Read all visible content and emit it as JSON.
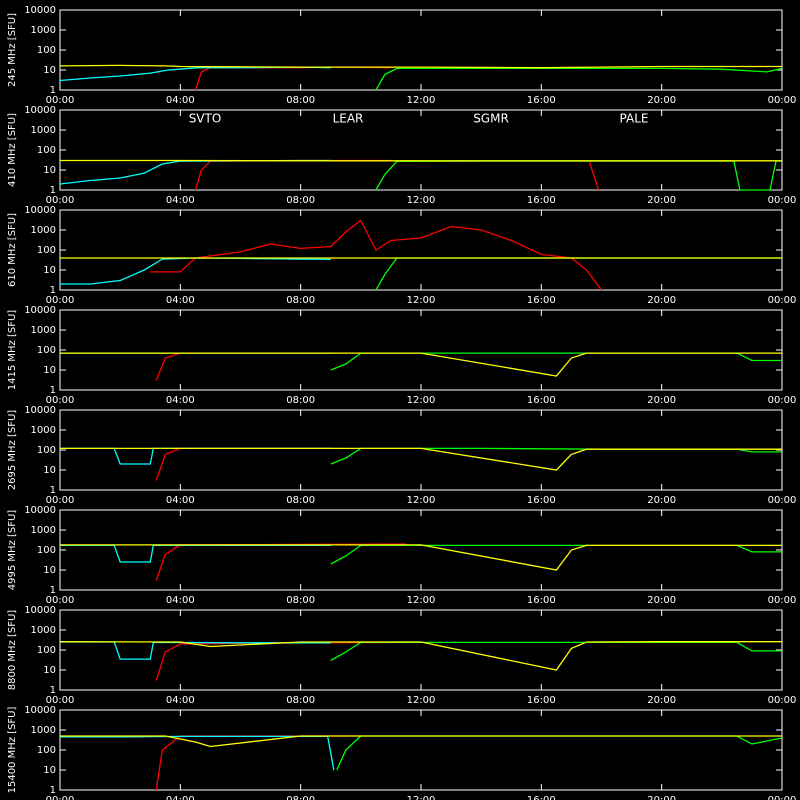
{
  "chart_data": [
    {
      "type": "line",
      "ylabel": "245 MHz [SFU]",
      "xlim": [
        0,
        24
      ],
      "ylim": [
        1,
        10000
      ],
      "log_y": true,
      "xticks": [
        {
          "value": 0,
          "label": "00:00"
        },
        {
          "value": 4,
          "label": "04:00"
        },
        {
          "value": 8,
          "label": "08:00"
        },
        {
          "value": 12,
          "label": "12:00"
        },
        {
          "value": 16,
          "label": "16:00"
        },
        {
          "value": 20,
          "label": "20:00"
        },
        {
          "value": 24,
          "label": "00:00"
        }
      ],
      "yticks": [
        1,
        10,
        100,
        1000,
        10000
      ],
      "series": [
        {
          "color": "#ff0000",
          "x": [
            4.5,
            4.7,
            5,
            8,
            9,
            11
          ],
          "values": [
            1,
            8,
            13,
            13,
            14,
            13
          ]
        },
        {
          "color": "#00ffff",
          "x": [
            0,
            1,
            2,
            3,
            3.6,
            4.6,
            6,
            8,
            9
          ],
          "values": [
            3,
            4,
            5,
            7,
            10,
            13,
            13,
            14,
            13
          ]
        },
        {
          "color": "#00ff00",
          "x": [
            10.5,
            10.8,
            11.2,
            14,
            17,
            20,
            22,
            23.5,
            24
          ],
          "values": [
            1,
            6,
            12,
            12,
            12,
            12,
            11,
            8,
            12
          ]
        },
        {
          "color": "#ffff00",
          "x": [
            0,
            2,
            3.5,
            4,
            8,
            12,
            16,
            18,
            20,
            22,
            24
          ],
          "values": [
            16,
            17,
            16,
            15,
            14,
            14,
            13,
            14,
            15,
            15,
            15
          ]
        }
      ]
    },
    {
      "type": "line",
      "ylabel": "410 MHz [SFU]",
      "xlim": [
        0,
        24
      ],
      "ylim": [
        1,
        10000
      ],
      "log_y": true,
      "legend": true,
      "xticks": [
        {
          "value": 0,
          "label": "00:00"
        },
        {
          "value": 4,
          "label": "04:00"
        },
        {
          "value": 8,
          "label": "08:00"
        },
        {
          "value": 12,
          "label": "12:00"
        },
        {
          "value": 16,
          "label": "16:00"
        },
        {
          "value": 20,
          "label": "20:00"
        },
        {
          "value": 24,
          "label": "00:00"
        }
      ],
      "yticks": [
        1,
        10,
        100,
        1000,
        10000
      ],
      "series": [
        {
          "name": "SVTO",
          "color": "#ff0000",
          "x": [
            4.5,
            4.7,
            5,
            8,
            11,
            17.3,
            17.6,
            17.9
          ],
          "values": [
            1,
            10,
            28,
            30,
            30,
            null,
            25,
            1
          ]
        },
        {
          "name": "LEAR",
          "color": "#00ffff",
          "x": [
            0,
            1,
            2,
            2.8,
            3.4,
            4,
            6,
            8,
            9
          ],
          "values": [
            2,
            3,
            4,
            7,
            20,
            28,
            29,
            30,
            30
          ]
        },
        {
          "name": "SGMR",
          "color": "#00ff00",
          "x": [
            10.5,
            10.8,
            11.2,
            14,
            18,
            22.4,
            22.6,
            23.6,
            23.8,
            24
          ],
          "values": [
            1,
            6,
            27,
            28,
            28,
            28,
            1,
            1,
            28,
            28
          ]
        },
        {
          "name": "PALE",
          "color": "#ffff00",
          "x": [
            0,
            4,
            8,
            12,
            16,
            20,
            24
          ],
          "values": [
            30,
            30,
            29,
            29,
            29,
            29,
            29
          ]
        }
      ]
    },
    {
      "type": "line",
      "ylabel": "610 MHz [SFU]",
      "xlim": [
        0,
        24
      ],
      "ylim": [
        1,
        10000
      ],
      "log_y": true,
      "xticks": [
        {
          "value": 0,
          "label": "00:00"
        },
        {
          "value": 4,
          "label": "04:00"
        },
        {
          "value": 8,
          "label": "08:00"
        },
        {
          "value": 12,
          "label": "12:00"
        },
        {
          "value": 16,
          "label": "16:00"
        },
        {
          "value": 20,
          "label": "20:00"
        },
        {
          "value": 24,
          "label": "00:00"
        }
      ],
      "yticks": [
        1,
        10,
        100,
        1000,
        10000
      ],
      "series": [
        {
          "color": "#ff0000",
          "x": [
            3,
            4,
            4.5,
            5,
            6,
            7,
            8,
            9,
            9.5,
            10,
            10.5,
            11,
            12,
            13,
            14,
            15,
            16,
            17,
            17.5,
            18
          ],
          "values": [
            8,
            8,
            40,
            50,
            80,
            200,
            120,
            150,
            800,
            3000,
            100,
            300,
            400,
            1500,
            1000,
            300,
            60,
            40,
            10,
            1
          ]
        },
        {
          "color": "#00ffff",
          "x": [
            0,
            1,
            2,
            2.8,
            3.4,
            4.5,
            6,
            8,
            9
          ],
          "values": [
            2,
            2,
            3,
            10,
            35,
            40,
            38,
            35,
            34
          ]
        },
        {
          "color": "#00ff00",
          "x": [
            10.5,
            10.8,
            11.2,
            14,
            18,
            22,
            24
          ],
          "values": [
            1,
            6,
            40,
            40,
            40,
            40,
            40
          ]
        },
        {
          "color": "#ffff00",
          "x": [
            0,
            4,
            8,
            12,
            16,
            20,
            24
          ],
          "values": [
            40,
            40,
            40,
            40,
            40,
            40,
            40
          ]
        }
      ]
    },
    {
      "type": "line",
      "ylabel": "1415 MHz [SFU]",
      "xlim": [
        0,
        24
      ],
      "ylim": [
        1,
        10000
      ],
      "log_y": true,
      "xticks": [
        {
          "value": 0,
          "label": "00:00"
        },
        {
          "value": 4,
          "label": "04:00"
        },
        {
          "value": 8,
          "label": "08:00"
        },
        {
          "value": 12,
          "label": "12:00"
        },
        {
          "value": 16,
          "label": "16:00"
        },
        {
          "value": 20,
          "label": "20:00"
        },
        {
          "value": 24,
          "label": "00:00"
        }
      ],
      "yticks": [
        1,
        10,
        100,
        1000,
        10000
      ],
      "series": [
        {
          "color": "#ff0000",
          "x": [
            3.2,
            3.5,
            4,
            8,
            9.2
          ],
          "values": [
            3,
            40,
            70,
            70,
            70
          ]
        },
        {
          "color": "#00ffff",
          "x": [
            0,
            2,
            4,
            6,
            9
          ],
          "values": [
            70,
            70,
            70,
            70,
            70
          ]
        },
        {
          "color": "#00ff00",
          "x": [
            9,
            9.5,
            10,
            14,
            18,
            22.5,
            23,
            24
          ],
          "values": [
            10,
            20,
            70,
            70,
            70,
            70,
            30,
            30
          ]
        },
        {
          "color": "#ffff00",
          "x": [
            0,
            4,
            8,
            12,
            16.5,
            17,
            17.5,
            20,
            24
          ],
          "values": [
            70,
            70,
            70,
            70,
            5,
            40,
            70,
            70,
            70
          ]
        }
      ]
    },
    {
      "type": "line",
      "ylabel": "2695 MHz [SFU]",
      "xlim": [
        0,
        24
      ],
      "ylim": [
        1,
        10000
      ],
      "log_y": true,
      "xticks": [
        {
          "value": 0,
          "label": "00:00"
        },
        {
          "value": 4,
          "label": "04:00"
        },
        {
          "value": 8,
          "label": "08:00"
        },
        {
          "value": 12,
          "label": "12:00"
        },
        {
          "value": 16,
          "label": "16:00"
        },
        {
          "value": 20,
          "label": "20:00"
        },
        {
          "value": 24,
          "label": "00:00"
        }
      ],
      "yticks": [
        1,
        10,
        100,
        1000,
        10000
      ],
      "series": [
        {
          "color": "#ff0000",
          "x": [
            3.2,
            3.5,
            4,
            8,
            9.2
          ],
          "values": [
            3,
            60,
            120,
            120,
            120
          ]
        },
        {
          "color": "#00ffff",
          "x": [
            0,
            1.8,
            2,
            3,
            3.1,
            6,
            9
          ],
          "values": [
            120,
            120,
            20,
            20,
            120,
            120,
            120
          ]
        },
        {
          "color": "#00ff00",
          "x": [
            9,
            9.5,
            10,
            14,
            18,
            22.5,
            23,
            24
          ],
          "values": [
            20,
            40,
            120,
            120,
            110,
            110,
            80,
            80
          ]
        },
        {
          "color": "#ffff00",
          "x": [
            0,
            4,
            8,
            12,
            16.5,
            17,
            17.5,
            20,
            24
          ],
          "values": [
            120,
            120,
            120,
            120,
            10,
            60,
            110,
            110,
            110
          ]
        }
      ]
    },
    {
      "type": "line",
      "ylabel": "4995 MHz [SFU]",
      "xlim": [
        0,
        24
      ],
      "ylim": [
        1,
        10000
      ],
      "log_y": true,
      "xticks": [
        {
          "value": 0,
          "label": "00:00"
        },
        {
          "value": 4,
          "label": "04:00"
        },
        {
          "value": 8,
          "label": "08:00"
        },
        {
          "value": 12,
          "label": "12:00"
        },
        {
          "value": 16,
          "label": "16:00"
        },
        {
          "value": 20,
          "label": "20:00"
        },
        {
          "value": 24,
          "label": "00:00"
        }
      ],
      "yticks": [
        1,
        10,
        100,
        1000,
        10000
      ],
      "series": [
        {
          "color": "#ff0000",
          "x": [
            3.2,
            3.5,
            4,
            8,
            11.5
          ],
          "values": [
            3,
            60,
            180,
            190,
            200
          ]
        },
        {
          "color": "#00ffff",
          "x": [
            0,
            1.8,
            2,
            3,
            3.1,
            6,
            9
          ],
          "values": [
            170,
            170,
            25,
            25,
            170,
            170,
            170
          ]
        },
        {
          "color": "#00ff00",
          "x": [
            9,
            9.5,
            10,
            14,
            18,
            22.5,
            23,
            24
          ],
          "values": [
            20,
            50,
            170,
            170,
            170,
            170,
            80,
            80
          ]
        },
        {
          "color": "#ffff00",
          "x": [
            0,
            4,
            8,
            12,
            16.5,
            17,
            17.5,
            20,
            24
          ],
          "values": [
            180,
            180,
            180,
            180,
            10,
            100,
            170,
            170,
            170
          ]
        }
      ]
    },
    {
      "type": "line",
      "ylabel": "8800 MHz [SFU]",
      "xlim": [
        0,
        24
      ],
      "ylim": [
        1,
        10000
      ],
      "log_y": true,
      "xticks": [
        {
          "value": 0,
          "label": "00:00"
        },
        {
          "value": 4,
          "label": "04:00"
        },
        {
          "value": 8,
          "label": "08:00"
        },
        {
          "value": 12,
          "label": "12:00"
        },
        {
          "value": 16,
          "label": "16:00"
        },
        {
          "value": 20,
          "label": "20:00"
        },
        {
          "value": 24,
          "label": "00:00"
        }
      ],
      "yticks": [
        1,
        10,
        100,
        1000,
        10000
      ],
      "series": [
        {
          "color": "#ff0000",
          "x": [
            3.2,
            3.5,
            4,
            8,
            11.5
          ],
          "values": [
            3,
            80,
            200,
            230,
            240
          ]
        },
        {
          "color": "#00ffff",
          "x": [
            0,
            1.8,
            2,
            3,
            3.1,
            6,
            9
          ],
          "values": [
            250,
            250,
            35,
            35,
            240,
            230,
            230
          ]
        },
        {
          "color": "#00ff00",
          "x": [
            9,
            9.5,
            10,
            14,
            18,
            22.5,
            23,
            24
          ],
          "values": [
            30,
            80,
            240,
            240,
            240,
            240,
            90,
            90
          ]
        },
        {
          "color": "#ffff00",
          "x": [
            0,
            4,
            5,
            8,
            12,
            16.5,
            17,
            17.5,
            20,
            24
          ],
          "values": [
            260,
            250,
            150,
            250,
            250,
            10,
            120,
            250,
            260,
            260
          ]
        }
      ]
    },
    {
      "type": "line",
      "ylabel": "15400 MHz [SFU]",
      "xlim": [
        0,
        24
      ],
      "ylim": [
        1,
        10000
      ],
      "log_y": true,
      "xticks": [
        {
          "value": 0,
          "label": "00:00"
        },
        {
          "value": 4,
          "label": "04:00"
        },
        {
          "value": 8,
          "label": "08:00"
        },
        {
          "value": 12,
          "label": "12:00"
        },
        {
          "value": 16,
          "label": "16:00"
        },
        {
          "value": 20,
          "label": "20:00"
        },
        {
          "value": 24,
          "label": "00:00"
        }
      ],
      "yticks": [
        1,
        10,
        100,
        1000,
        10000
      ],
      "series": [
        {
          "color": "#ff0000",
          "x": [
            3.2,
            3.4,
            4,
            8,
            10
          ],
          "values": [
            1,
            100,
            500,
            500,
            500
          ]
        },
        {
          "color": "#00ffff",
          "x": [
            0,
            2,
            4,
            6,
            8.9,
            9.1
          ],
          "values": [
            450,
            450,
            480,
            480,
            480,
            10
          ]
        },
        {
          "color": "#00ff00",
          "x": [
            9.2,
            9.5,
            10,
            14,
            18,
            22.5,
            23,
            24
          ],
          "values": [
            10,
            100,
            500,
            500,
            500,
            500,
            200,
            400
          ]
        },
        {
          "color": "#ffff00",
          "x": [
            0,
            3.5,
            4.5,
            5,
            8,
            12,
            17,
            20,
            24
          ],
          "values": [
            500,
            500,
            250,
            150,
            500,
            500,
            500,
            500,
            500
          ]
        }
      ]
    }
  ]
}
